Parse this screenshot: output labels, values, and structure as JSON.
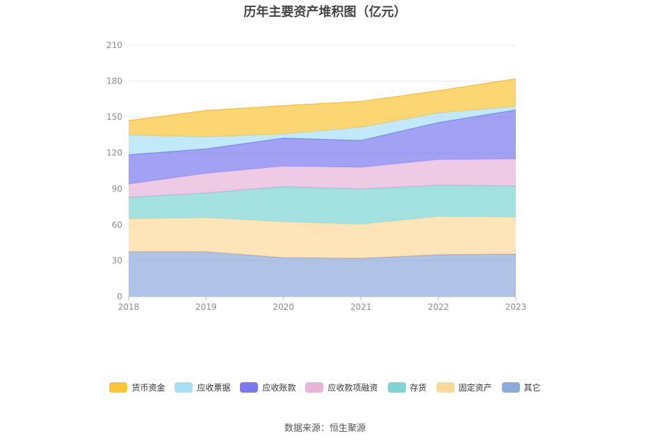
{
  "chart_data": {
    "type": "area",
    "stacked": true,
    "title": "历年主要资产堆积图（亿元）",
    "x": [
      "2018",
      "2019",
      "2020",
      "2021",
      "2022",
      "2023"
    ],
    "ylim": [
      0,
      210
    ],
    "yticks": [
      0,
      30,
      60,
      90,
      120,
      150,
      180,
      210
    ],
    "grid": true,
    "legend_position": "bottom",
    "series": [
      {
        "name": "其它",
        "color": "#8eaadb",
        "values": [
          37.5,
          37.5,
          32.5,
          32,
          35,
          35.5
        ]
      },
      {
        "name": "固定资产",
        "color": "#fdd89a",
        "values": [
          27.5,
          28.5,
          30,
          28.5,
          32,
          31
        ]
      },
      {
        "name": "存货",
        "color": "#7dd6d4",
        "values": [
          18,
          20.5,
          29.5,
          29.5,
          26,
          26
        ]
      },
      {
        "name": "应收款项融资",
        "color": "#e8b4d8",
        "values": [
          11,
          16.5,
          17,
          18,
          21.5,
          22.5
        ]
      },
      {
        "name": "应收账款",
        "color": "#7a79f0",
        "values": [
          24.5,
          20.5,
          23.5,
          22.5,
          31,
          41
        ]
      },
      {
        "name": "应收票据",
        "color": "#a8dff7",
        "values": [
          16.5,
          10,
          3.5,
          11,
          8,
          3
        ]
      },
      {
        "name": "货币资金",
        "color": "#fbc537",
        "values": [
          12,
          22,
          23.5,
          21.5,
          18.5,
          23
        ]
      }
    ],
    "legend_order": [
      "货币资金",
      "应收票据",
      "应收账款",
      "应收款项融资",
      "存货",
      "固定资产",
      "其它"
    ]
  },
  "source": "数据来源：恒生聚源"
}
